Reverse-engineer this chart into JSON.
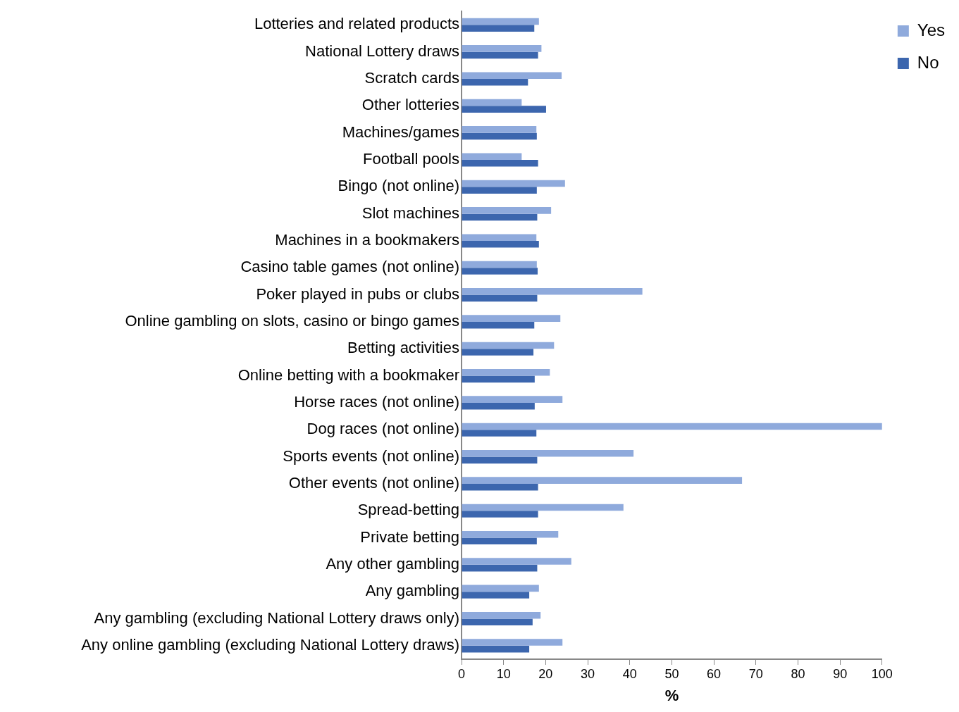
{
  "chart_data": {
    "type": "bar",
    "orientation": "horizontal",
    "xlabel": "%",
    "categories": [
      "Lotteries and related products",
      "National Lottery draws",
      "Scratch cards",
      "Other lotteries",
      "Machines/games",
      "Football pools",
      "Bingo (not online)",
      "Slot machines",
      "Machines in a bookmakers",
      "Casino table games (not online)",
      "Poker played in pubs or clubs",
      "Online gambling on slots, casino or bingo games",
      "Betting activities",
      "Online betting with a bookmaker",
      "Horse races (not online)",
      "Dog races (not online)",
      "Sports events (not online)",
      "Other events (not online)",
      "Spread-betting",
      "Private betting",
      "Any other gambling",
      "Any gambling",
      "Any gambling (excluding National Lottery draws only)",
      "Any online gambling (excluding National Lottery draws)"
    ],
    "series": [
      {
        "name": "Yes",
        "color": "#8faadc",
        "values": [
          18.4,
          19.0,
          23.8,
          14.3,
          17.8,
          14.3,
          24.6,
          21.3,
          17.8,
          17.9,
          43.0,
          23.5,
          22.0,
          21.0,
          24.0,
          100,
          40.9,
          66.7,
          38.5,
          23.0,
          26.1,
          18.4,
          18.8,
          24.0
        ]
      },
      {
        "name": "No",
        "color": "#3c66ae",
        "values": [
          17.3,
          18.2,
          15.8,
          20.1,
          17.9,
          18.2,
          17.9,
          18.0,
          18.4,
          18.1,
          18.0,
          17.3,
          17.1,
          17.4,
          17.4,
          17.8,
          18.0,
          18.2,
          18.2,
          17.9,
          18.0,
          16.1,
          16.9,
          16.1
        ]
      }
    ],
    "xlim": [
      0,
      100
    ],
    "xticks": [
      0,
      10,
      20,
      30,
      40,
      50,
      60,
      70,
      80,
      90,
      100
    ],
    "grid": false,
    "legend": "top right"
  }
}
